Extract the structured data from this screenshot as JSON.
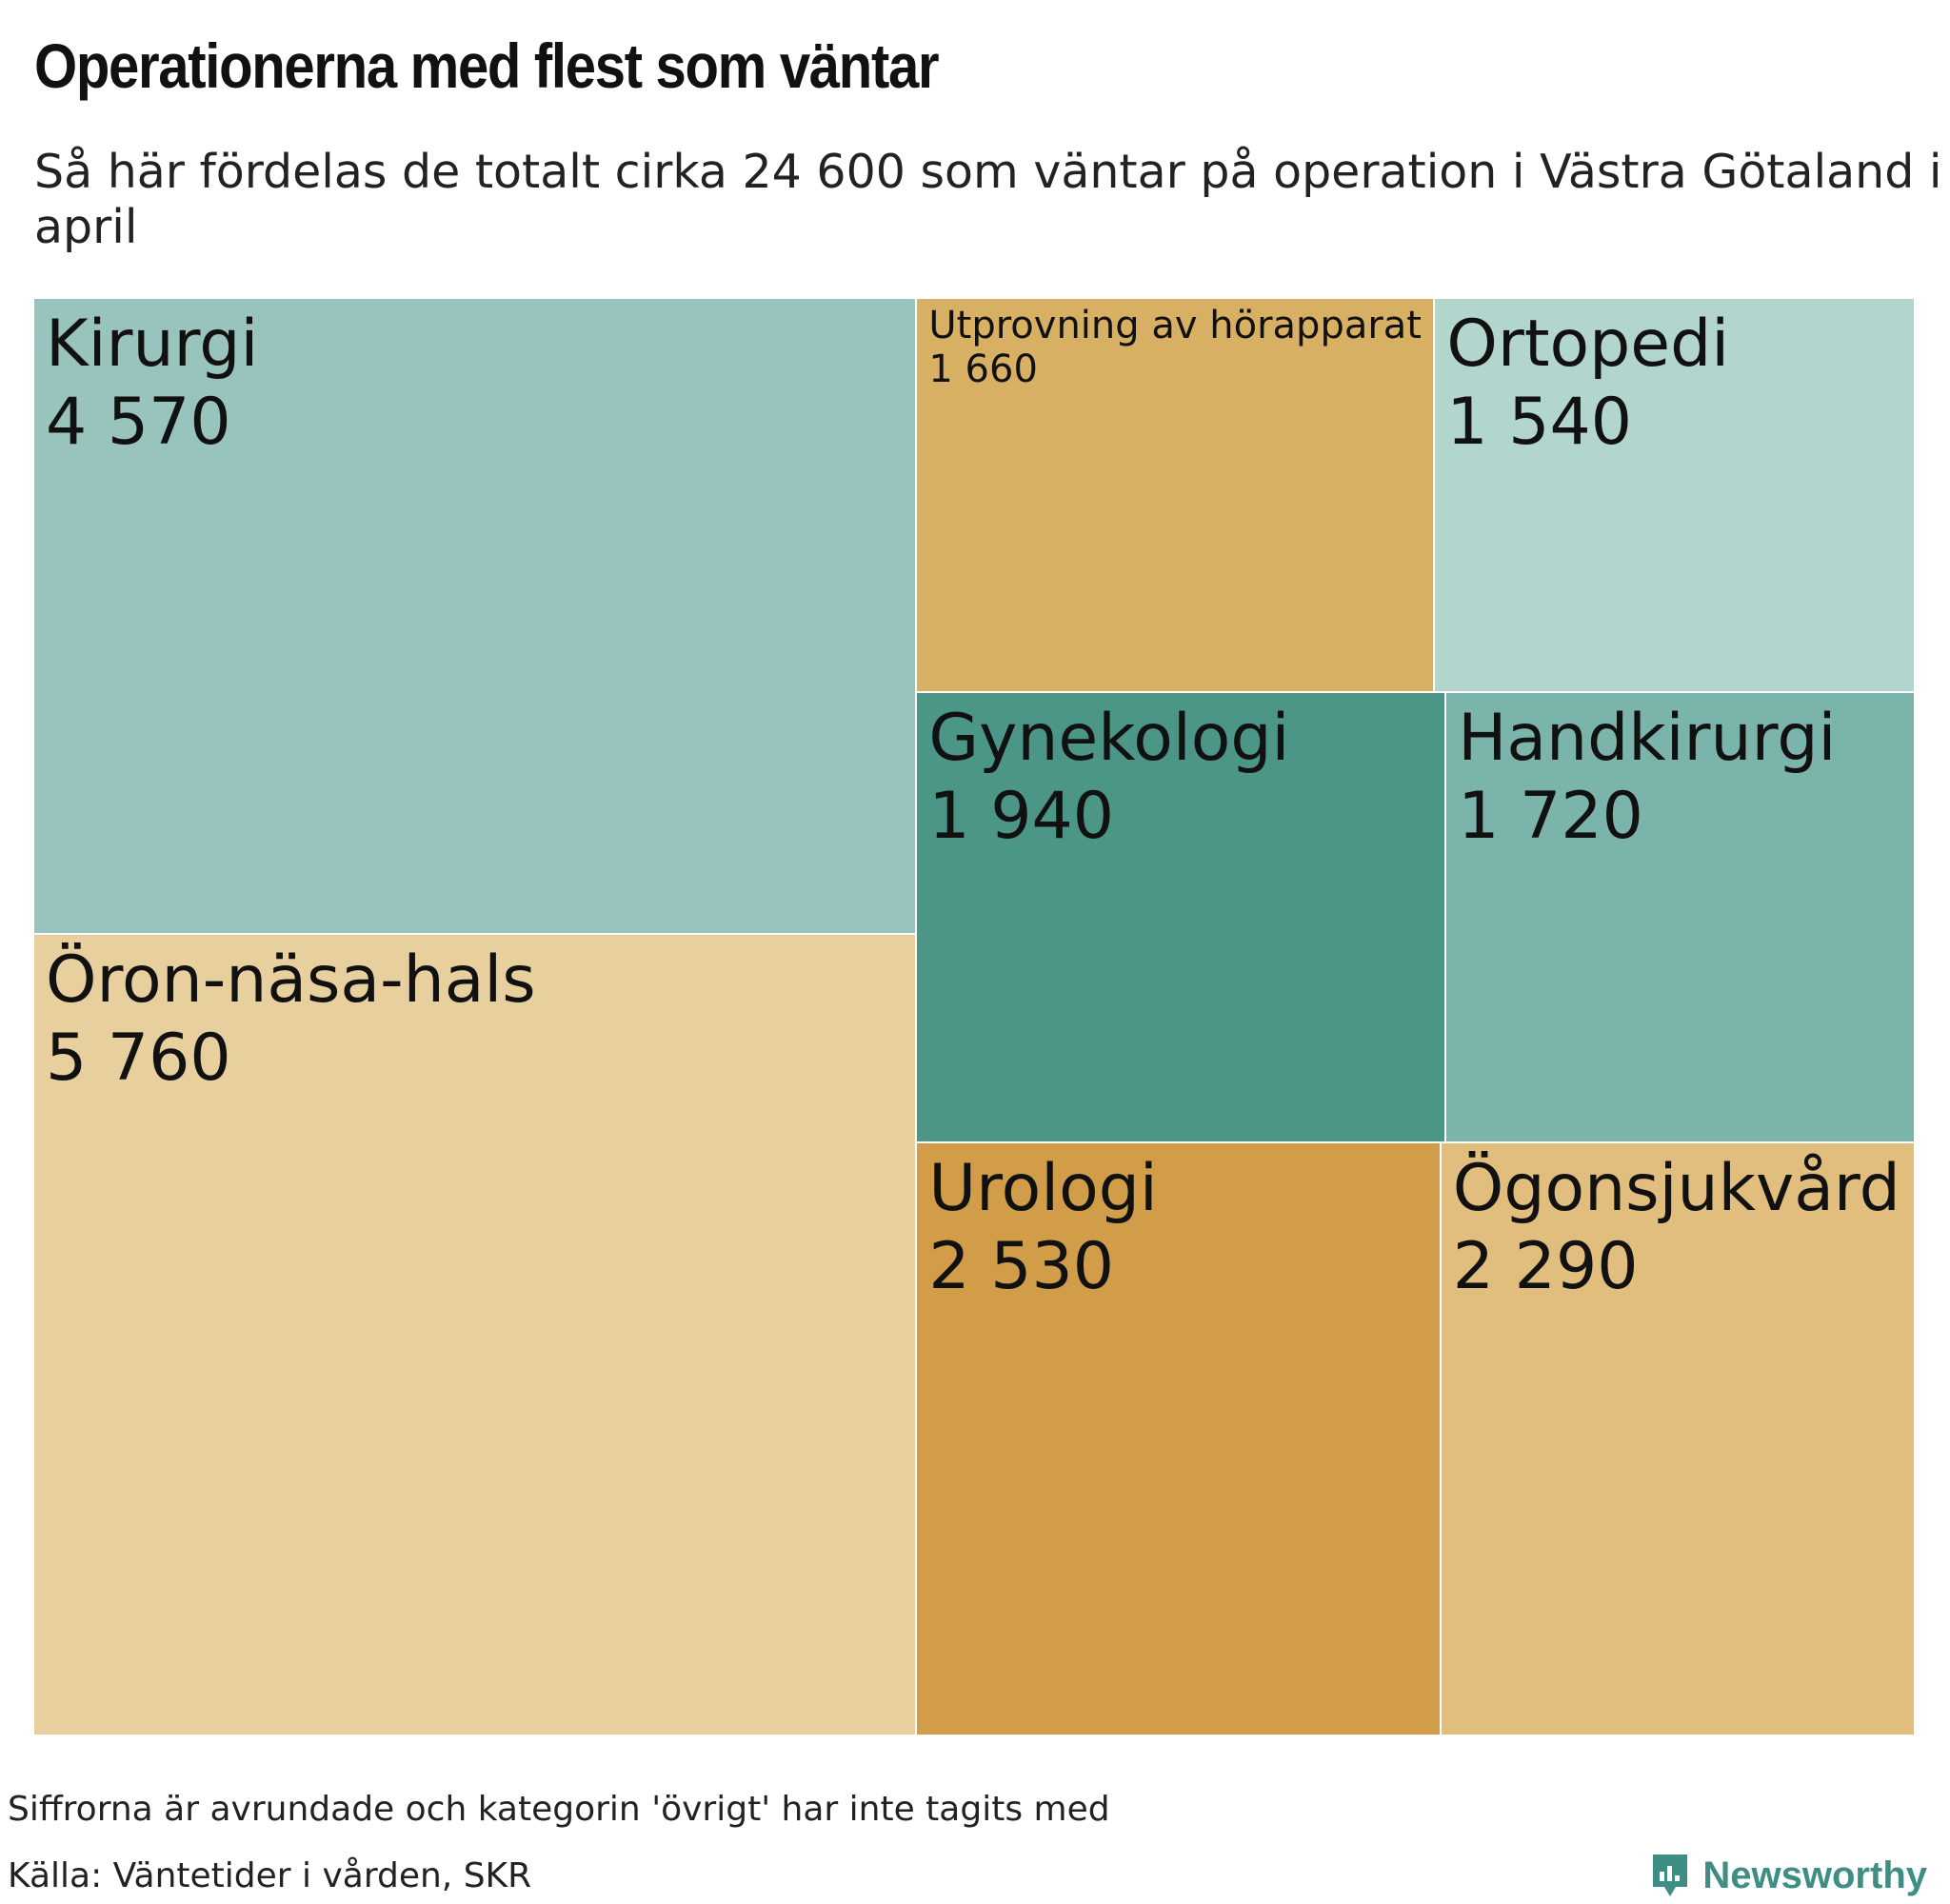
{
  "title": "Operationerna med flest som väntar",
  "subtitle": "Så här fördelas de totalt cirka 24 600 som väntar på operation i Västra Götaland i april",
  "footer": {
    "note": "Siffrorna är avrundade och kategorin 'övrigt' har inte tagits med",
    "source": "Källa: Väntetider i vården, SKR",
    "brand": "Newsworthy",
    "brand_icon": "newsworthy-logo-icon"
  },
  "chart_data": {
    "type": "treemap",
    "title": "Operationerna med flest som väntar",
    "subtitle": "Så här fördelas de totalt cirka 24 600 som väntar på operation i Västra Götaland i april",
    "unit": "antal som väntar",
    "items": [
      {
        "name": "Kirurgi",
        "label": "4 570",
        "value": 4570,
        "color": "#98c4bd"
      },
      {
        "name": "Öron-näsa-hals",
        "label": "5 760",
        "value": 5760,
        "color": "#e8d09e"
      },
      {
        "name": "Utprovning av hörapparat",
        "label": "1 660",
        "value": 1660,
        "color": "#d8b064"
      },
      {
        "name": "Ortopedi",
        "label": "1 540",
        "value": 1540,
        "color": "#b2d6cd"
      },
      {
        "name": "Gynekologi",
        "label": "1 940",
        "value": 1940,
        "color": "#4c9688"
      },
      {
        "name": "Handkirurgi",
        "label": "1 720",
        "value": 1720,
        "color": "#7bb4ab"
      },
      {
        "name": "Urologi",
        "label": "2 530",
        "value": 2530,
        "color": "#d19d48"
      },
      {
        "name": "Ögonsjukvård",
        "label": "2 290",
        "value": 2290,
        "color": "#e2be7e"
      }
    ]
  }
}
